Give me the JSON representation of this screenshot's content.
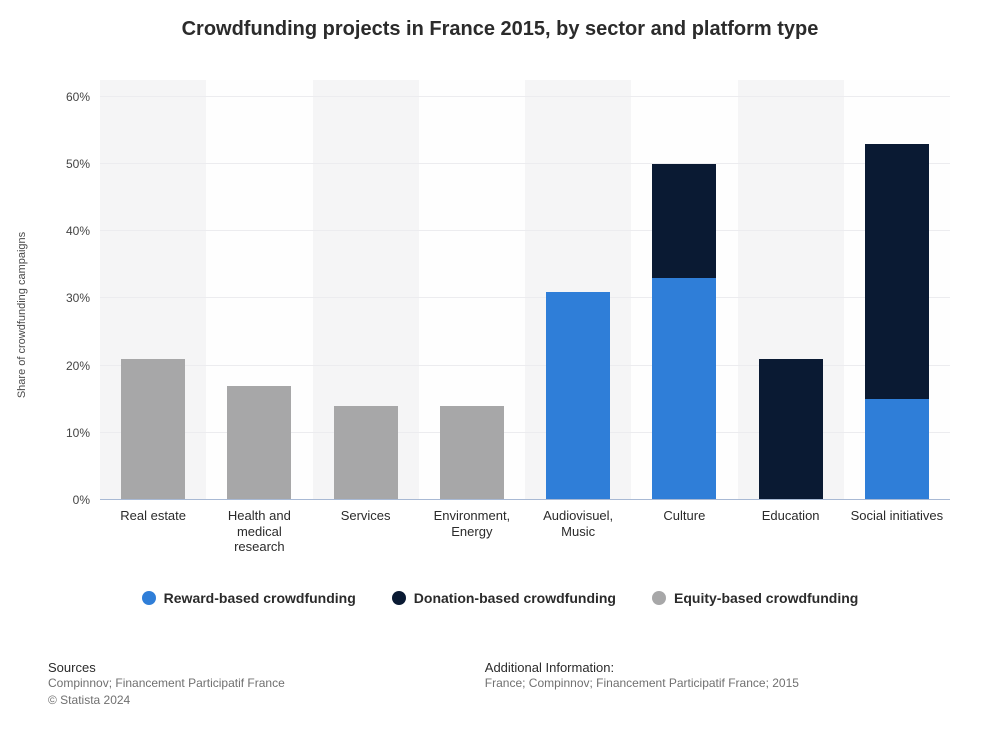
{
  "title": "Crowdfunding projects in France 2015, by sector and platform type",
  "title_fontsize": 20,
  "ylabel": "Share of crowdfunding campaigns",
  "background_color": "#ffffff",
  "band_colors": [
    "#f5f5f6",
    "#fefefe"
  ],
  "grid_color": "#ececef",
  "axis_line_color": "#a8b9d4",
  "tick_color": "#444444",
  "ylim": [
    0,
    62.5
  ],
  "yticks": [
    0,
    10,
    20,
    30,
    40,
    50,
    60
  ],
  "ytick_labels": [
    "0%",
    "10%",
    "20%",
    "30%",
    "40%",
    "50%",
    "60%"
  ],
  "series": [
    {
      "key": "reward",
      "label": "Reward-based crowdfunding",
      "color": "#2f7ed8"
    },
    {
      "key": "donation",
      "label": "Donation-based crowdfunding",
      "color": "#0a1a33"
    },
    {
      "key": "equity",
      "label": "Equity-based crowdfunding",
      "color": "#a7a7a8"
    }
  ],
  "categories": [
    {
      "label": "Real estate",
      "reward": 0,
      "donation": 0,
      "equity": 21
    },
    {
      "label": "Health and medical research",
      "reward": 0,
      "donation": 0,
      "equity": 17
    },
    {
      "label": "Services",
      "reward": 0,
      "donation": 0,
      "equity": 14
    },
    {
      "label": "Environment, Energy",
      "reward": 0,
      "donation": 0,
      "equity": 14
    },
    {
      "label": "Audiovisuel, Music",
      "reward": 31,
      "donation": 0,
      "equity": 0
    },
    {
      "label": "Culture",
      "reward": 33,
      "donation": 17,
      "equity": 0
    },
    {
      "label": "Education",
      "reward": 0,
      "donation": 21,
      "equity": 0
    },
    {
      "label": "Social initiatives",
      "reward": 15,
      "donation": 38,
      "equity": 0
    }
  ],
  "sources": {
    "heading": "Sources",
    "text1": "Compinnov; Financement Participatif France",
    "text2": "© Statista 2024"
  },
  "additional": {
    "heading": "Additional Information:",
    "text": "France; Compinnov; Financement Participatif France; 2015"
  }
}
